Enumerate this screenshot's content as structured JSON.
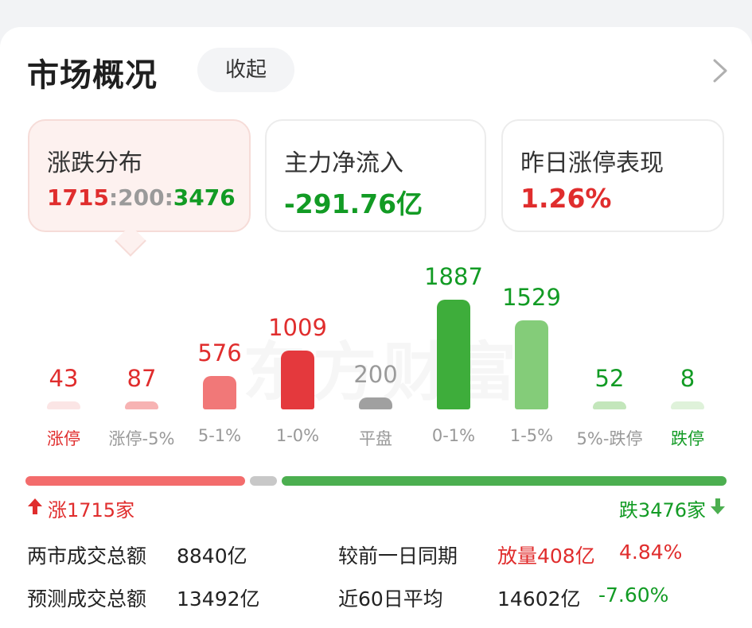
{
  "header": {
    "title": "市场概况",
    "collapse_label": "收起",
    "watermark": "东方财富"
  },
  "stats": [
    {
      "label": "涨跌分布",
      "up": "1715",
      "sep": ":",
      "flat": "200",
      "down": "3476"
    },
    {
      "label": "主力净流入",
      "value": "-291.76亿",
      "color": "#129b24"
    },
    {
      "label": "昨日涨停表现",
      "value": "1.26%",
      "color": "#e02d2d"
    }
  ],
  "distribution": [
    {
      "value": 43,
      "label": "涨停",
      "color": "#fbe5e5",
      "text_color": "#e02d2d"
    },
    {
      "value": 87,
      "label": "涨停-5%",
      "color": "#f7b3b3",
      "text_color": "#e02d2d"
    },
    {
      "value": 576,
      "label": "5-1%",
      "color": "#f17878",
      "text_color": "#e02d2d"
    },
    {
      "value": 1009,
      "label": "1-0%",
      "color": "#e4393d",
      "text_color": "#e02d2d"
    },
    {
      "value": 200,
      "label": "平盘",
      "color": "#a0a0a0",
      "text_color": "#9a9a9a"
    },
    {
      "value": 1887,
      "label": "0-1%",
      "color": "#3ead3b",
      "text_color": "#129b24"
    },
    {
      "value": 1529,
      "label": "1-5%",
      "color": "#84cc79",
      "text_color": "#129b24"
    },
    {
      "value": 52,
      "label": "5%-跌停",
      "color": "#c3e6bb",
      "text_color": "#129b24"
    },
    {
      "value": 8,
      "label": "跌停",
      "color": "#dff2da",
      "text_color": "#129b24"
    }
  ],
  "ratio": {
    "up_label": "涨1715家",
    "down_label": "跌3476家",
    "up_count": 1715,
    "flat_count": 200,
    "down_count": 3476,
    "up_color": "#f36c6c",
    "flat_color": "#c8c8c8",
    "down_color": "#4caf50"
  },
  "summary": {
    "turnover_label": "两市成交总额",
    "turnover_value": "8840亿",
    "compare_label": "较前一日同期",
    "compare_value": "放量408亿",
    "compare_pct": "4.84%",
    "forecast_label": "预测成交总额",
    "forecast_value": "13492亿",
    "avg_label": "近60日平均",
    "avg_value": "14602亿",
    "avg_pct": "-7.60%"
  }
}
